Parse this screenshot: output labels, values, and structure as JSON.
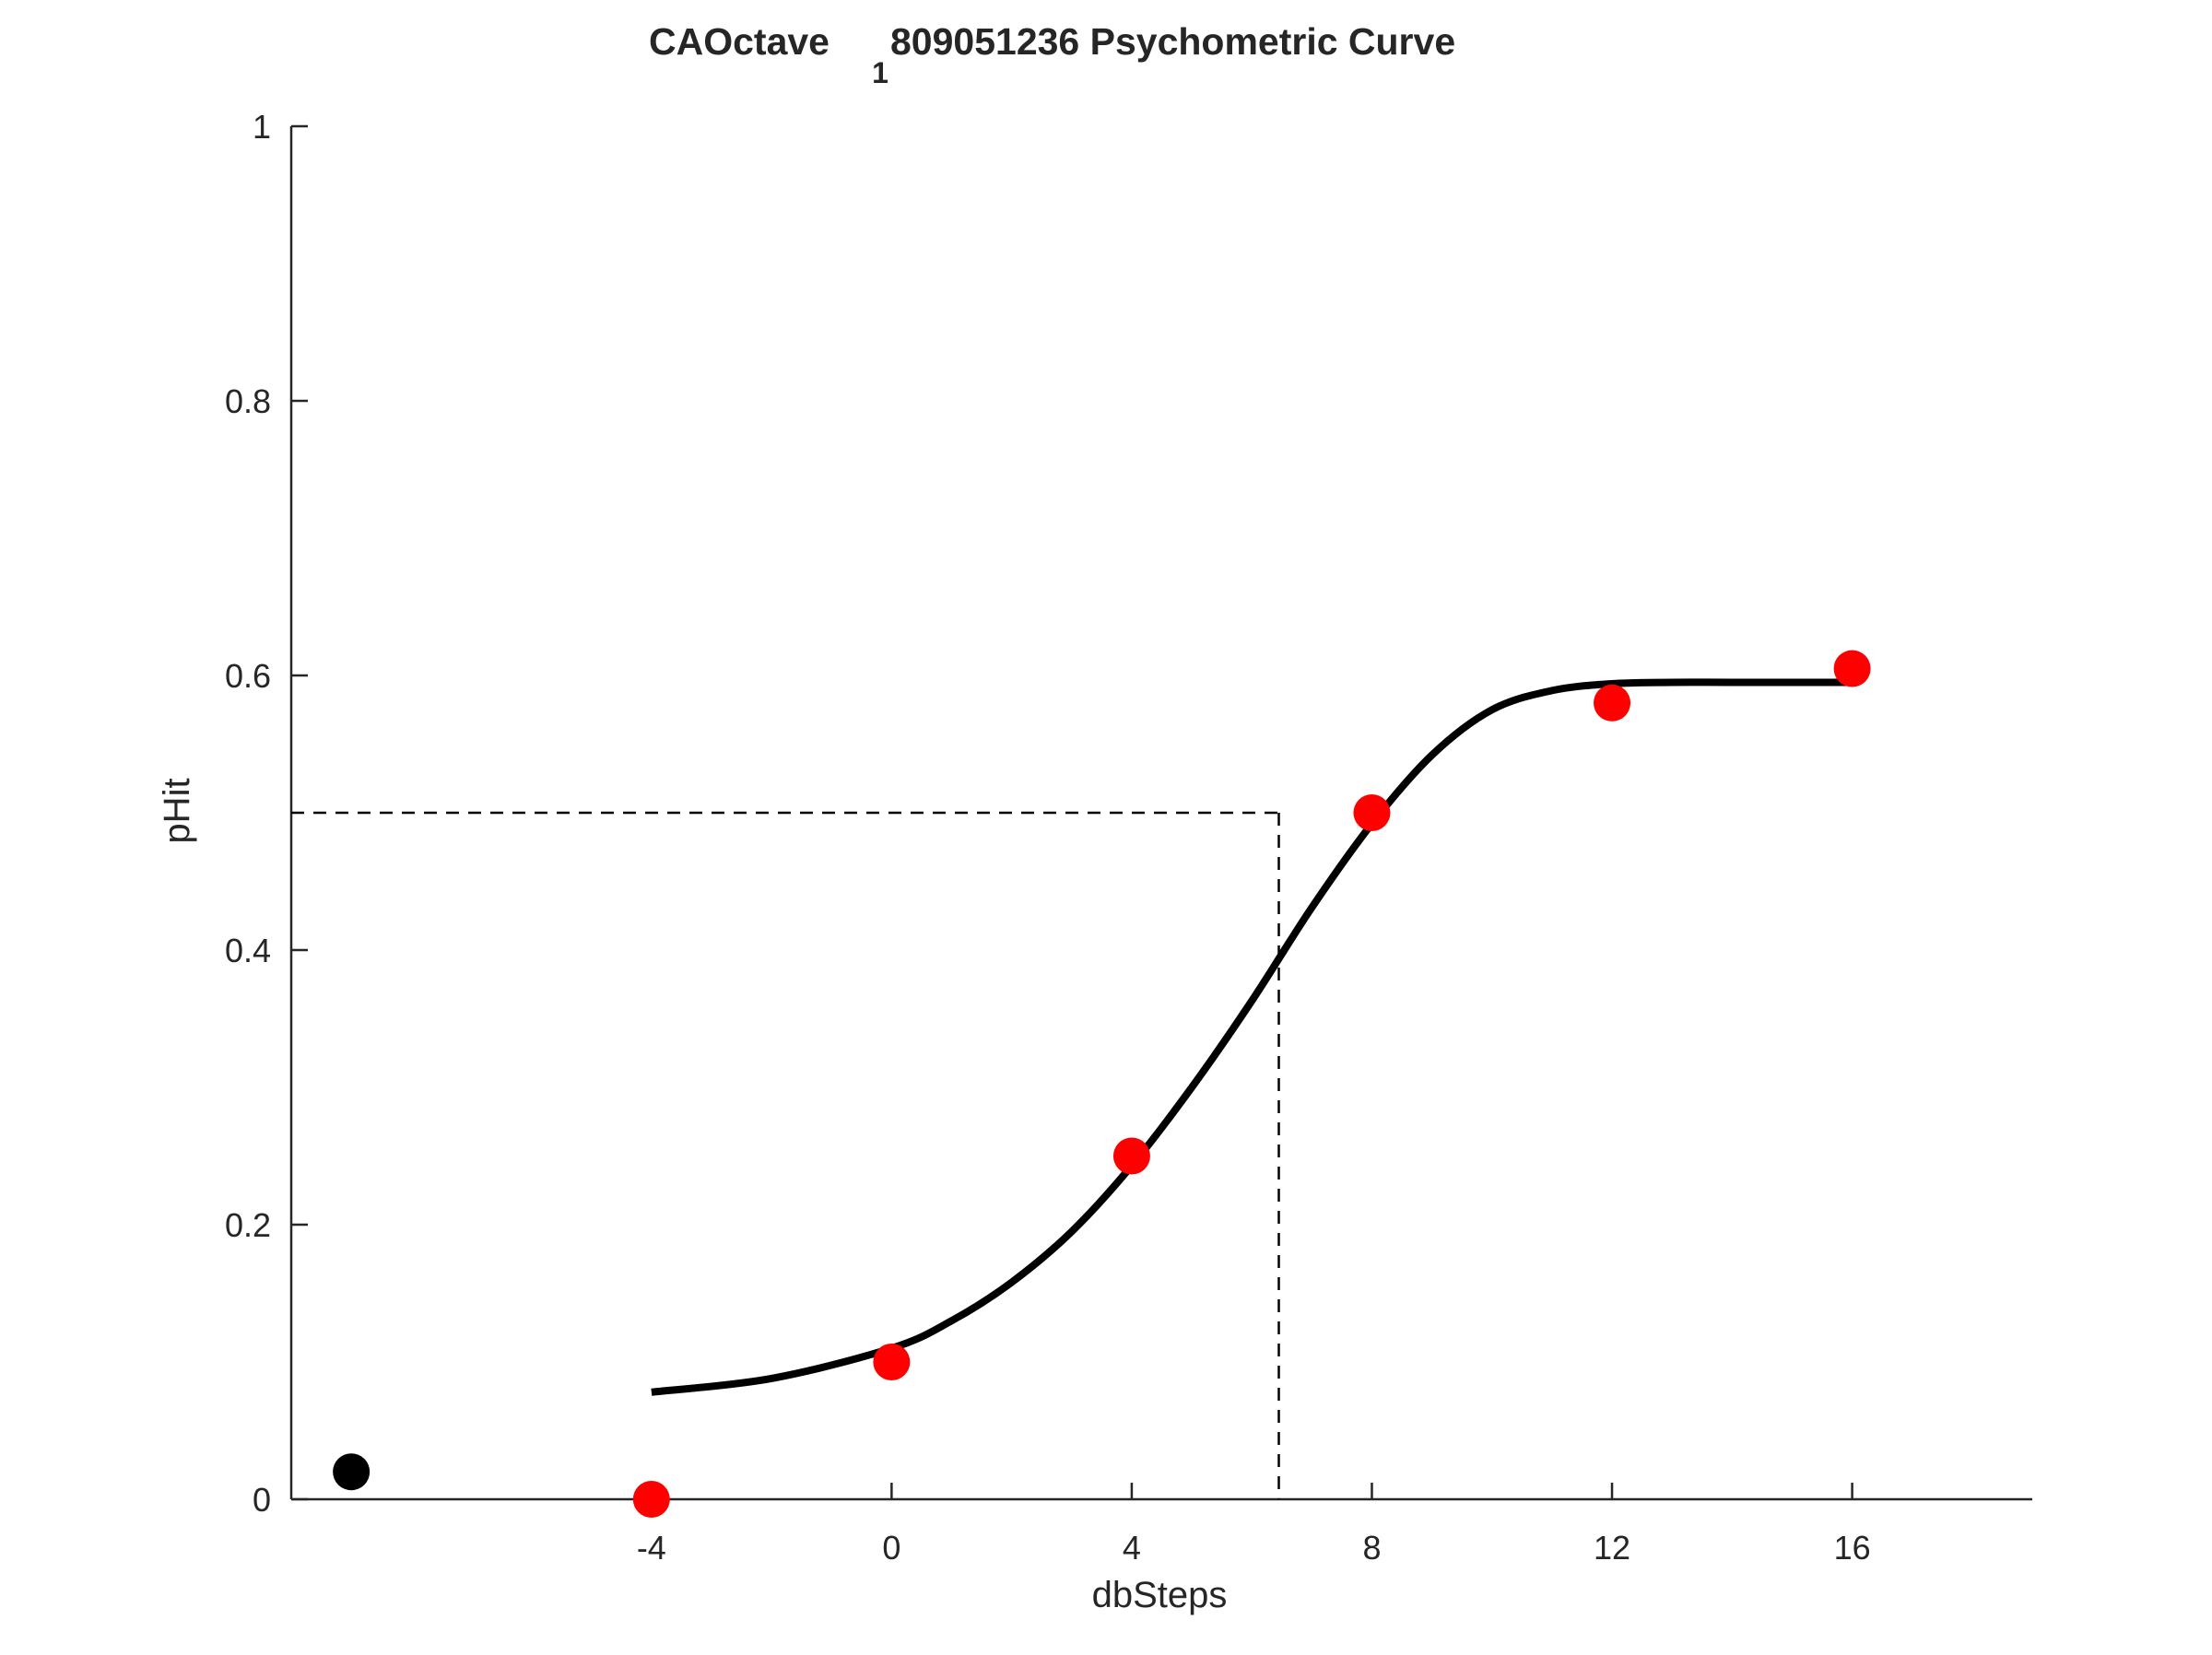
{
  "chart_data": {
    "type": "scatter",
    "title_main": "CAOctave",
    "title_subscript": "1",
    "title_rest": "809051236 Psychometric Curve",
    "xlabel": "dbSteps",
    "ylabel": "pHit",
    "xlim": [
      -10,
      19
    ],
    "ylim": [
      0,
      1
    ],
    "xticks": [
      -4,
      0,
      4,
      8,
      12,
      16
    ],
    "yticks": [
      0,
      0.2,
      0.4,
      0.6,
      0.8,
      1
    ],
    "xtick_labels": [
      "-4",
      "0",
      "4",
      "8",
      "12",
      "16"
    ],
    "ytick_labels": [
      "0",
      "0.2",
      "0.4",
      "0.6",
      "0.8",
      "1"
    ],
    "grid": false,
    "points": {
      "color": "#ff0000",
      "x": [
        -4,
        0,
        4,
        8,
        12,
        16
      ],
      "y": [
        0.0,
        0.1,
        0.25,
        0.5,
        0.58,
        0.605
      ]
    },
    "baseline_point": {
      "color": "#000000",
      "x": -9,
      "y": 0.02
    },
    "fit_curve": {
      "color": "#000000",
      "x": [
        -4,
        -2,
        0,
        1,
        2,
        3,
        4,
        5,
        6,
        7,
        8,
        9,
        10,
        11,
        12,
        13,
        14,
        16
      ],
      "y": [
        0.078,
        0.088,
        0.11,
        0.13,
        0.158,
        0.195,
        0.243,
        0.3,
        0.363,
        0.431,
        0.492,
        0.542,
        0.575,
        0.589,
        0.594,
        0.595,
        0.595,
        0.595
      ]
    },
    "threshold": {
      "x": 6.45,
      "y": 0.5,
      "style": "dashed"
    }
  }
}
